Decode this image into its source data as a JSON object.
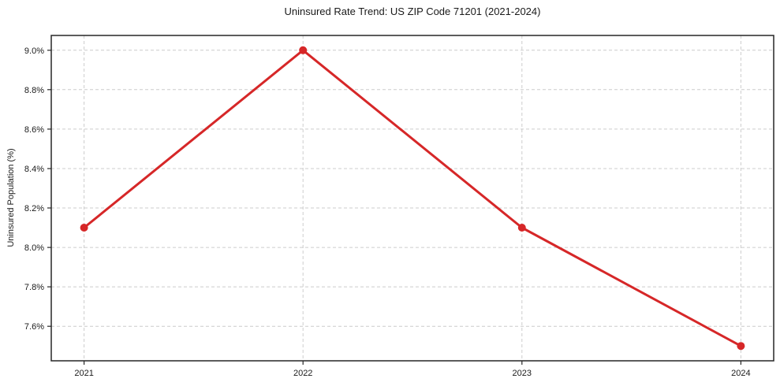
{
  "chart_data": {
    "type": "line",
    "title": "Uninsured Rate Trend: US ZIP Code 71201 (2021-2024)",
    "xlabel": "",
    "ylabel": "Uninsured Population (%)",
    "x": [
      2021,
      2022,
      2023,
      2024
    ],
    "values": [
      8.1,
      9.0,
      8.1,
      7.5
    ],
    "xlim": [
      2020.85,
      2024.15
    ],
    "ylim": [
      7.425,
      9.075
    ],
    "xticks": [
      {
        "value": 2021,
        "label": "2021"
      },
      {
        "value": 2022,
        "label": "2022"
      },
      {
        "value": 2023,
        "label": "2023"
      },
      {
        "value": 2024,
        "label": "2024"
      }
    ],
    "yticks": [
      {
        "value": 7.6,
        "label": "7.6%"
      },
      {
        "value": 7.8,
        "label": "7.8%"
      },
      {
        "value": 8.0,
        "label": "8.0%"
      },
      {
        "value": 8.2,
        "label": "8.2%"
      },
      {
        "value": 8.4,
        "label": "8.4%"
      },
      {
        "value": 8.6,
        "label": "8.6%"
      },
      {
        "value": 8.8,
        "label": "8.8%"
      },
      {
        "value": 9.0,
        "label": "9.0%"
      }
    ],
    "grid": true,
    "legend": false,
    "line_color": "#d62728",
    "marker_color": "#d62728",
    "grid_color": "#cccccc",
    "background_color": "#ffffff",
    "line_width": 3,
    "marker_radius": 5
  }
}
